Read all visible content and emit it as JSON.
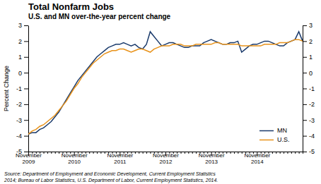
{
  "chart_data": {
    "type": "line",
    "title": "Total Nonfarm Jobs",
    "subtitle": "U.S. and MN over-the-year percent change",
    "ylabel": "Percent Change",
    "annotations": [
      "Source: Department of Employment and Economic Development, Current Employment Statistics\n2014; Bureau of Labor Statistics, U.S. Department of Labor, Current Employment Statistics, 2014."
    ],
    "categories": [
      "November\n2009",
      null,
      null,
      null,
      null,
      null,
      null,
      null,
      null,
      null,
      null,
      null,
      "November\n2010",
      null,
      null,
      null,
      null,
      null,
      null,
      null,
      null,
      null,
      null,
      null,
      "November\n2011",
      null,
      null,
      null,
      null,
      null,
      null,
      null,
      null,
      null,
      null,
      null,
      "November\n2012",
      null,
      null,
      null,
      null,
      null,
      null,
      null,
      null,
      null,
      null,
      null,
      "November\n2013",
      null,
      null,
      null,
      null,
      null,
      null,
      null,
      null,
      null,
      null,
      null,
      "November\n2014",
      null,
      null,
      null,
      null,
      null,
      null,
      null,
      null,
      null,
      null,
      null,
      null
    ],
    "series": [
      {
        "name": "MN",
        "color": "#1a3a6b",
        "values": [
          -3.9,
          -3.8,
          -3.8,
          -3.6,
          -3.5,
          -3.3,
          -3.1,
          -2.8,
          -2.5,
          -2.1,
          -1.7,
          -1.3,
          -0.9,
          -0.5,
          -0.2,
          0.1,
          0.4,
          0.7,
          1.0,
          1.2,
          1.4,
          1.6,
          1.7,
          1.8,
          1.8,
          1.9,
          1.8,
          1.7,
          1.8,
          1.6,
          1.5,
          1.8,
          2.6,
          2.3,
          2.0,
          1.7,
          1.8,
          1.9,
          1.9,
          1.8,
          1.7,
          1.6,
          1.6,
          1.7,
          1.7,
          1.7,
          1.9,
          2.0,
          2.1,
          2.0,
          1.9,
          1.8,
          1.8,
          1.9,
          1.9,
          2.0,
          1.3,
          1.5,
          1.7,
          1.8,
          1.8,
          1.9,
          2.0,
          2.0,
          1.9,
          1.8,
          1.7,
          1.7,
          1.9,
          2.0,
          2.1,
          2.6,
          2.0
        ]
      },
      {
        "name": "U.S.",
        "color": "#e8921a",
        "values": [
          -3.9,
          -3.7,
          -3.6,
          -3.4,
          -3.3,
          -3.1,
          -2.9,
          -2.7,
          -2.4,
          -2.1,
          -1.8,
          -1.4,
          -1.0,
          -0.7,
          -0.3,
          0.0,
          0.3,
          0.6,
          0.8,
          1.0,
          1.2,
          1.3,
          1.4,
          1.4,
          1.5,
          1.5,
          1.4,
          1.3,
          1.4,
          1.5,
          1.5,
          1.4,
          1.3,
          1.5,
          1.6,
          1.7,
          1.7,
          1.7,
          1.8,
          1.8,
          1.8,
          1.7,
          1.7,
          1.7,
          1.8,
          1.8,
          1.8,
          1.8,
          1.8,
          1.9,
          1.9,
          1.8,
          1.8,
          1.8,
          1.8,
          1.8,
          1.7,
          1.7,
          1.7,
          1.7,
          1.7,
          1.7,
          1.8,
          1.8,
          1.8,
          1.8,
          1.9,
          1.9,
          1.9,
          2.0,
          2.1,
          2.1,
          2.0
        ]
      }
    ],
    "ylim": [
      -5,
      3
    ],
    "yticks": [
      -5,
      -4,
      -3,
      -2,
      -1,
      0,
      1,
      2,
      3
    ],
    "y2lim": [
      -5,
      3
    ],
    "y2ticks": [
      -5,
      -4,
      -3,
      -2,
      -1,
      0,
      1,
      2,
      3
    ],
    "legend": "lower right"
  }
}
